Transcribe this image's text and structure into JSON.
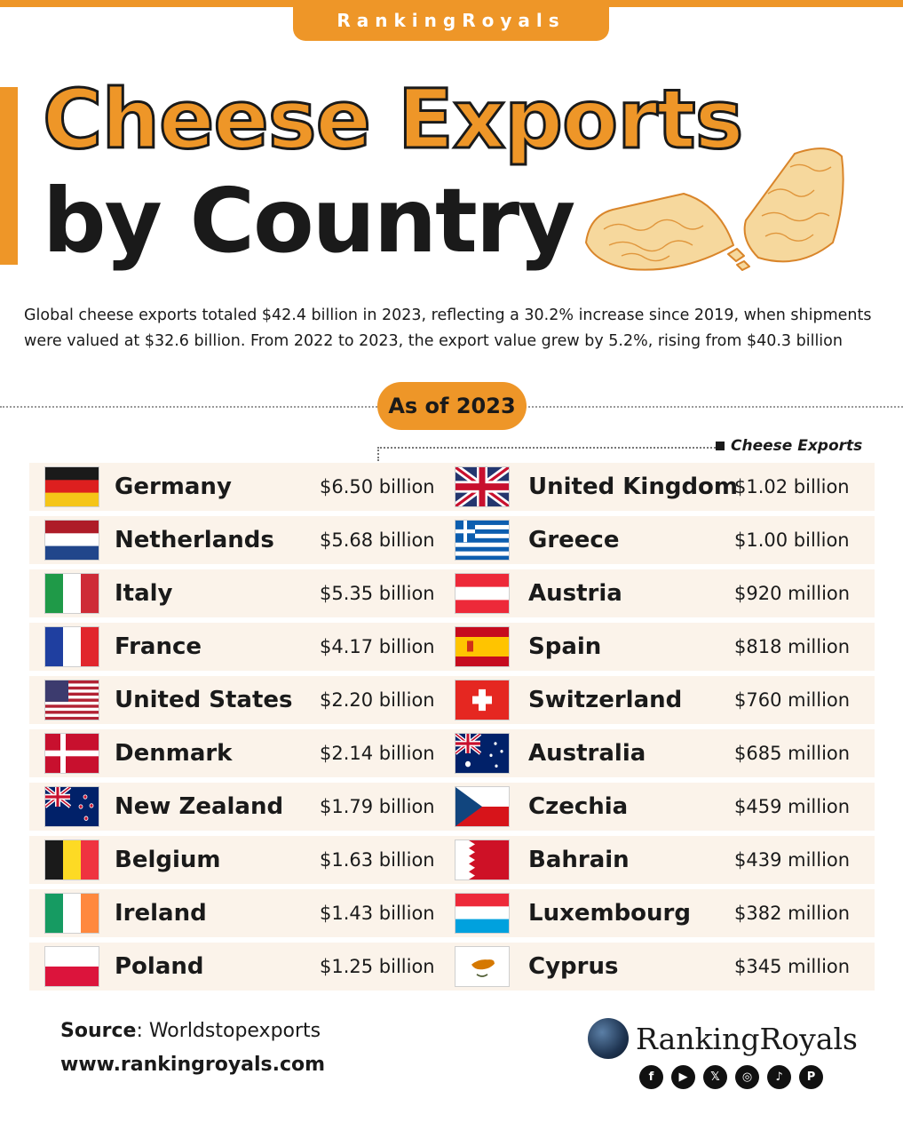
{
  "brand_tab": "RankingRoyals",
  "title": {
    "line1": "Cheese Exports",
    "line2": "by Country"
  },
  "intro": "Global cheese exports totaled $42.4 billion in 2023, reflecting a 30.2% increase since 2019, when shipments were valued at $32.6 billion. From 2022 to 2023, the export value grew by 5.2%, rising from $40.3 billion",
  "as_of": "As of 2023",
  "legend": "Cheese Exports",
  "left_column": [
    {
      "country": "Germany",
      "value": "$6.50 billion",
      "flag": "germany-flag-icon"
    },
    {
      "country": "Netherlands",
      "value": "$5.68 billion",
      "flag": "netherlands-flag-icon"
    },
    {
      "country": "Italy",
      "value": "$5.35 billion",
      "flag": "italy-flag-icon"
    },
    {
      "country": "France",
      "value": "$4.17 billion",
      "flag": "france-flag-icon"
    },
    {
      "country": "United States",
      "value": "$2.20 billion",
      "flag": "united-states-flag-icon"
    },
    {
      "country": "Denmark",
      "value": "$2.14 billion",
      "flag": "denmark-flag-icon"
    },
    {
      "country": "New Zealand",
      "value": "$1.79 billion",
      "flag": "new-zealand-flag-icon"
    },
    {
      "country": "Belgium",
      "value": "$1.63 billion",
      "flag": "belgium-flag-icon"
    },
    {
      "country": "Ireland",
      "value": "$1.43 billion",
      "flag": "ireland-flag-icon"
    },
    {
      "country": "Poland",
      "value": "$1.25 billion",
      "flag": "poland-flag-icon"
    }
  ],
  "right_column": [
    {
      "country": "United Kingdom",
      "value": "$1.02 billion",
      "flag": "united-kingdom-flag-icon"
    },
    {
      "country": "Greece",
      "value": "$1.00 billion",
      "flag": "greece-flag-icon"
    },
    {
      "country": "Austria",
      "value": "$920 million",
      "flag": "austria-flag-icon"
    },
    {
      "country": "Spain",
      "value": "$818 million",
      "flag": "spain-flag-icon"
    },
    {
      "country": "Switzerland",
      "value": "$760 million",
      "flag": "switzerland-flag-icon"
    },
    {
      "country": "Australia",
      "value": "$685 million",
      "flag": "australia-flag-icon"
    },
    {
      "country": "Czechia",
      "value": "$459 million",
      "flag": "czechia-flag-icon"
    },
    {
      "country": "Bahrain",
      "value": "$439 million",
      "flag": "bahrain-flag-icon"
    },
    {
      "country": "Luxembourg",
      "value": "$382 million",
      "flag": "luxembourg-flag-icon"
    },
    {
      "country": "Cyprus",
      "value": "$345 million",
      "flag": "cyprus-flag-icon"
    }
  ],
  "source": {
    "label": "Source",
    "separator": ": ",
    "text": "Worldstopexports"
  },
  "website": "www.rankingroyals.com",
  "logo_text": "RankingRoyals",
  "socials": [
    "facebook-icon",
    "youtube-icon",
    "x-icon",
    "instagram-icon",
    "tiktok-icon",
    "pinterest-icon"
  ],
  "colors": {
    "accent": "#ee9628",
    "row_bg": "#fbf3ea",
    "text": "#1a1a1a"
  }
}
